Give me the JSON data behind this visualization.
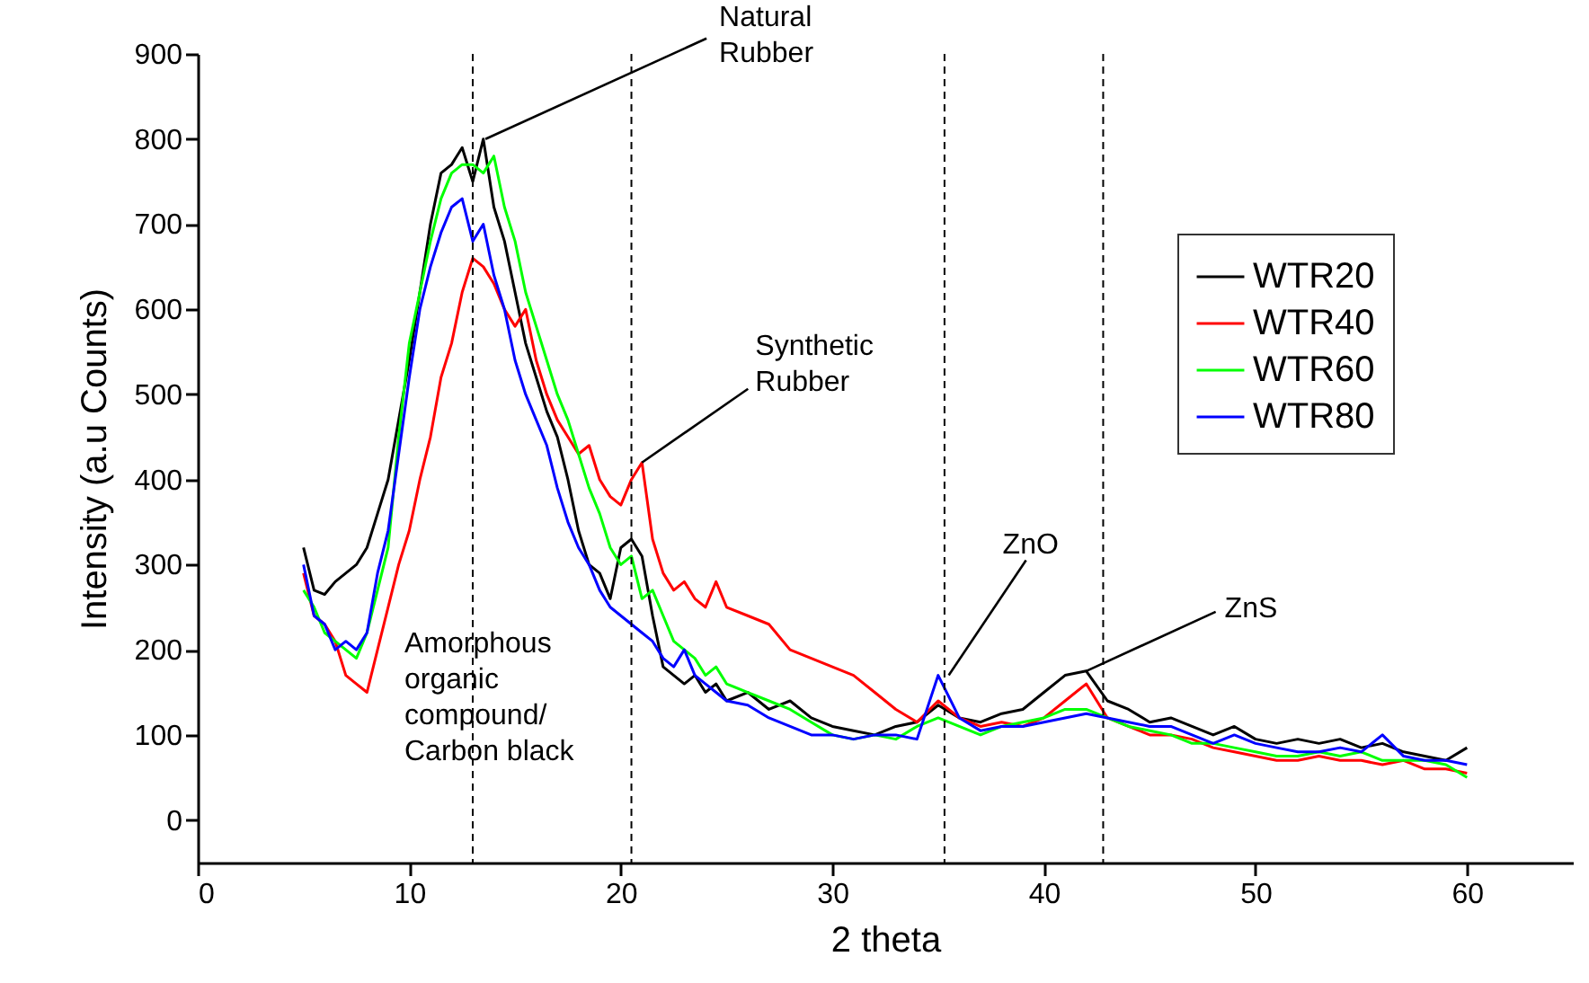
{
  "chart_data": {
    "type": "line",
    "xlabel": "2 theta",
    "ylabel": "Intensity (a.u Counts)",
    "x": [
      5,
      5.5,
      6,
      6.5,
      7,
      7.5,
      8,
      8.5,
      9,
      9.5,
      10,
      10.5,
      11,
      11.5,
      12,
      12.5,
      13,
      13.5,
      14,
      14.5,
      15,
      15.5,
      16,
      16.5,
      17,
      17.5,
      18,
      18.5,
      19,
      19.5,
      20,
      20.5,
      21,
      21.5,
      22,
      22.5,
      23,
      23.5,
      24,
      24.5,
      25,
      26,
      27,
      28,
      29,
      30,
      31,
      32,
      33,
      34,
      35,
      36,
      37,
      38,
      39,
      40,
      41,
      42,
      43,
      44,
      45,
      46,
      47,
      48,
      49,
      50,
      51,
      52,
      53,
      54,
      55,
      56,
      57,
      58,
      59,
      60
    ],
    "series": [
      {
        "name": "WTR20",
        "color": "#000000",
        "values": [
          320,
          270,
          265,
          280,
          290,
          300,
          320,
          360,
          400,
          470,
          540,
          620,
          700,
          760,
          770,
          790,
          750,
          800,
          720,
          680,
          620,
          560,
          520,
          480,
          450,
          400,
          340,
          300,
          290,
          260,
          320,
          330,
          310,
          240,
          180,
          170,
          160,
          170,
          150,
          160,
          140,
          150,
          130,
          140,
          120,
          110,
          105,
          100,
          110,
          115,
          135,
          120,
          115,
          125,
          130,
          150,
          170,
          175,
          140,
          130,
          115,
          120,
          110,
          100,
          110,
          95,
          90,
          95,
          90,
          95,
          85,
          90,
          80,
          75,
          70,
          85
        ]
      },
      {
        "name": "WTR40",
        "color": "#ff0000",
        "values": [
          290,
          240,
          230,
          210,
          170,
          160,
          150,
          200,
          250,
          300,
          340,
          400,
          450,
          520,
          560,
          620,
          660,
          650,
          630,
          600,
          580,
          600,
          540,
          500,
          470,
          450,
          430,
          440,
          400,
          380,
          370,
          400,
          420,
          330,
          290,
          270,
          280,
          260,
          250,
          280,
          250,
          240,
          230,
          200,
          190,
          180,
          170,
          150,
          130,
          115,
          140,
          120,
          110,
          115,
          110,
          120,
          140,
          160,
          120,
          110,
          100,
          100,
          95,
          85,
          80,
          75,
          70,
          70,
          75,
          70,
          70,
          65,
          70,
          60,
          60,
          55
        ]
      },
      {
        "name": "WTR60",
        "color": "#00ff00",
        "values": [
          270,
          250,
          220,
          210,
          200,
          190,
          220,
          270,
          320,
          450,
          560,
          620,
          680,
          730,
          760,
          770,
          770,
          760,
          780,
          720,
          680,
          620,
          580,
          540,
          500,
          470,
          430,
          390,
          360,
          320,
          300,
          310,
          260,
          270,
          240,
          210,
          200,
          190,
          170,
          180,
          160,
          150,
          140,
          130,
          115,
          100,
          95,
          100,
          95,
          110,
          120,
          110,
          100,
          110,
          115,
          120,
          130,
          130,
          120,
          110,
          105,
          100,
          90,
          90,
          85,
          80,
          75,
          75,
          80,
          75,
          80,
          70,
          70,
          70,
          65,
          50
        ]
      },
      {
        "name": "WTR80",
        "color": "#0000ff",
        "values": [
          300,
          240,
          230,
          200,
          210,
          200,
          220,
          290,
          340,
          430,
          520,
          600,
          650,
          690,
          720,
          730,
          680,
          700,
          640,
          600,
          540,
          500,
          470,
          440,
          390,
          350,
          320,
          300,
          270,
          250,
          240,
          230,
          220,
          210,
          190,
          180,
          200,
          170,
          160,
          150,
          140,
          135,
          120,
          110,
          100,
          100,
          95,
          100,
          100,
          95,
          170,
          120,
          105,
          110,
          110,
          115,
          120,
          125,
          120,
          115,
          110,
          110,
          100,
          90,
          100,
          90,
          85,
          80,
          80,
          85,
          80,
          100,
          75,
          70,
          70,
          65
        ]
      }
    ],
    "xlim": [
      0,
      65
    ],
    "xticks": [
      0,
      10,
      20,
      30,
      40,
      50,
      60
    ],
    "ylim": [
      -50,
      900
    ],
    "yticks": [
      0,
      100,
      200,
      300,
      400,
      500,
      600,
      700,
      800,
      900
    ],
    "grid": false,
    "legend": "top right",
    "line_style": "solid",
    "marker": "none",
    "ref_lines": [
      {
        "axis": "x",
        "value": 13,
        "line_style": "dashed",
        "color": "#000000"
      },
      {
        "axis": "x",
        "value": 20.5,
        "line_style": "dashed",
        "color": "#000000"
      },
      {
        "axis": "x",
        "value": 35.3,
        "line_style": "dashed",
        "color": "#000000"
      },
      {
        "axis": "x",
        "value": 42.8,
        "line_style": "dashed",
        "color": "#000000"
      }
    ],
    "annotations": [
      {
        "text": "Natural\nRubber",
        "x": 13.6,
        "y": 800
      },
      {
        "text": "Synthetic\nRubber",
        "x": 21,
        "y": 420
      },
      {
        "text": "ZnO",
        "x": 35.5,
        "y": 170
      },
      {
        "text": "ZnS",
        "x": 42,
        "y": 175
      },
      "Amorphous\norganic\ncompound/\nCarbon black"
    ]
  }
}
